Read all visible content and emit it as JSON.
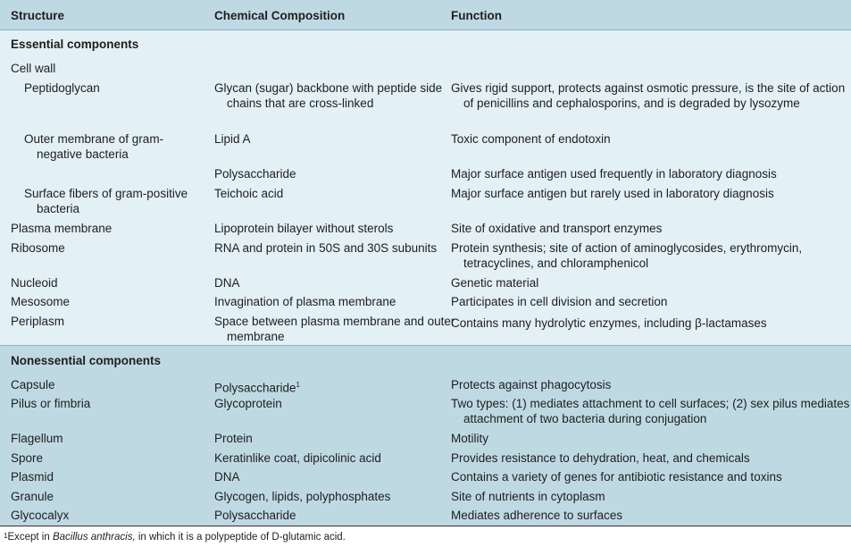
{
  "table": {
    "headers": [
      "Structure",
      "Chemical Composition",
      "Function"
    ],
    "sections": [
      {
        "title": "Essential components",
        "rows": [
          {
            "structure": "Cell wall",
            "composition": "",
            "function": ""
          },
          {
            "structure": "Peptidoglycan",
            "composition": "Glycan (sugar) backbone with peptide side chains that are cross-linked",
            "function": "Gives rigid support, protects against osmotic pressure, is the site of action of penicillins and cephalosporins, and is degraded by lysozyme"
          },
          {
            "structure": "Outer membrane of gram-negative bacteria",
            "composition": "Lipid A",
            "function": "Toxic component of endotoxin"
          },
          {
            "structure": "",
            "composition": "Polysaccharide",
            "function": "Major surface antigen used frequently in laboratory diagnosis"
          },
          {
            "structure": "Surface fibers of gram-positive bacteria",
            "composition": "Teichoic acid",
            "function": "Major surface antigen but rarely used in laboratory diagnosis"
          },
          {
            "structure": "Plasma membrane",
            "composition": "Lipoprotein bilayer without sterols",
            "function": "Site of oxidative and transport enzymes"
          },
          {
            "structure": "Ribosome",
            "composition": "RNA and protein in 50S and 30S subunits",
            "function": "Protein synthesis; site of action of aminoglycosides, erythromycin, tetracyclines, and chloramphenicol"
          },
          {
            "structure": "Nucleoid",
            "composition": "DNA",
            "function": "Genetic material"
          },
          {
            "structure": "Mesosome",
            "composition": "Invagination of plasma membrane",
            "function": "Participates in cell division and secretion"
          },
          {
            "structure": "Periplasm",
            "composition": "Space between plasma membrane and outer membrane",
            "function": "Contains many hydrolytic enzymes, including β-lactamases"
          }
        ]
      },
      {
        "title": "Nonessential components",
        "rows": [
          {
            "structure": "Capsule",
            "composition": "Polysaccharide",
            "composition_sup": "1",
            "function": "Protects against phagocytosis"
          },
          {
            "structure": "Pilus or fimbria",
            "composition": "Glycoprotein",
            "function": "Two types: (1) mediates attachment to cell surfaces; (2) sex pilus mediates attachment of two bacteria during conjugation"
          },
          {
            "structure": "Flagellum",
            "composition": "Protein",
            "function": "Motility"
          },
          {
            "structure": "Spore",
            "composition": "Keratinlike coat, dipicolinic acid",
            "function": "Provides resistance to dehydration, heat, and chemicals"
          },
          {
            "structure": "Plasmid",
            "composition": "DNA",
            "function": "Contains a variety of genes for antibiotic resistance and toxins"
          },
          {
            "structure": "Granule",
            "composition": "Glycogen, lipids, polyphosphates",
            "function": "Site of nutrients in cytoplasm"
          },
          {
            "structure": "Glycocalyx",
            "composition": "Polysaccharide",
            "function": "Mediates adherence to surfaces"
          }
        ]
      }
    ]
  },
  "footnote": {
    "mark": "1",
    "prefix": "Except in ",
    "italic": "Bacillus anthracis,",
    "suffix": " in which it is a polypeptide of D-glutamic acid."
  }
}
